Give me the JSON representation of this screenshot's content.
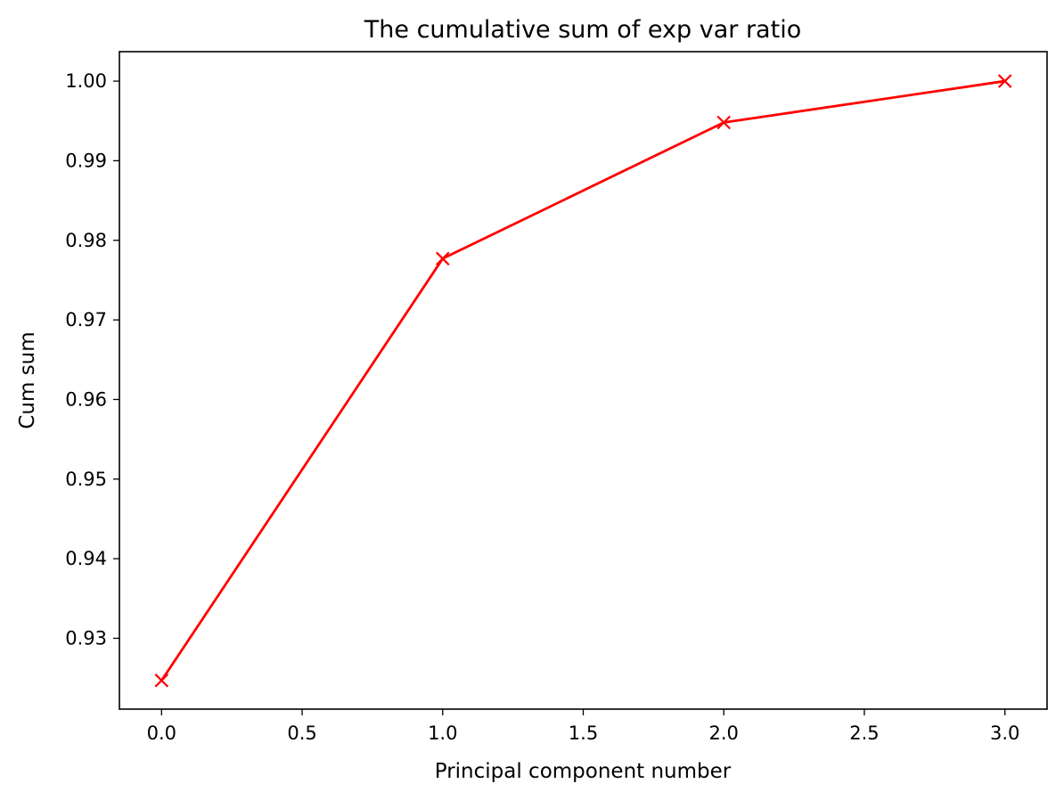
{
  "chart_data": {
    "type": "line",
    "title": "The cumulative sum of exp var ratio",
    "xlabel": "Principal component number",
    "ylabel": "Cum sum",
    "x": [
      0,
      1,
      2,
      3
    ],
    "series": [
      {
        "values": [
          0.9247,
          0.9777,
          0.9948,
          1.0
        ],
        "color": "#ff0000",
        "marker": "x"
      }
    ],
    "xlim": [
      -0.15,
      3.15
    ],
    "ylim": [
      0.9211,
      1.0037
    ],
    "xticks": [
      0.0,
      0.5,
      1.0,
      1.5,
      2.0,
      2.5,
      3.0
    ],
    "xtick_labels": [
      "0.0",
      "0.5",
      "1.0",
      "1.5",
      "2.0",
      "2.5",
      "3.0"
    ],
    "yticks": [
      0.93,
      0.94,
      0.95,
      0.96,
      0.97,
      0.98,
      0.99,
      1.0
    ],
    "ytick_labels": [
      "0.93",
      "0.94",
      "0.95",
      "0.96",
      "0.97",
      "0.98",
      "0.99",
      "1.00"
    ],
    "grid": false,
    "legend": false
  }
}
